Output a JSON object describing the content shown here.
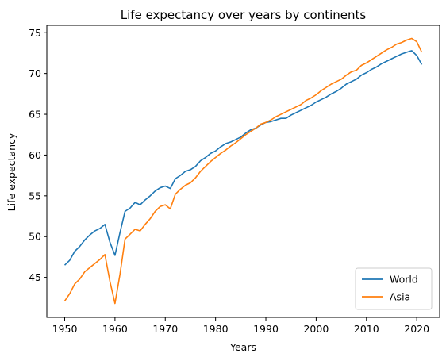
{
  "chart_data": {
    "type": "line",
    "title": "Life expectancy over years by continents",
    "xlabel": "Years",
    "ylabel": "Life expectancy",
    "xlim": [
      1946.45,
      2024.55
    ],
    "ylim": [
      40.1,
      75.9
    ],
    "xticks": [
      "1950",
      "1960",
      "1970",
      "1980",
      "1990",
      "2000",
      "2010",
      "2020"
    ],
    "yticks": [
      "45",
      "50",
      "55",
      "60",
      "65",
      "70",
      "75"
    ],
    "grid": false,
    "legend_position": "lower-right",
    "x": [
      1950,
      1951,
      1952,
      1953,
      1954,
      1955,
      1956,
      1957,
      1958,
      1959,
      1960,
      1961,
      1962,
      1963,
      1964,
      1965,
      1966,
      1967,
      1968,
      1969,
      1970,
      1971,
      1972,
      1973,
      1974,
      1975,
      1976,
      1977,
      1978,
      1979,
      1980,
      1981,
      1982,
      1983,
      1984,
      1985,
      1986,
      1987,
      1988,
      1989,
      1990,
      1991,
      1992,
      1993,
      1994,
      1995,
      1996,
      1997,
      1998,
      1999,
      2000,
      2001,
      2002,
      2003,
      2004,
      2005,
      2006,
      2007,
      2008,
      2009,
      2010,
      2011,
      2012,
      2013,
      2014,
      2015,
      2016,
      2017,
      2018,
      2019,
      2020,
      2021
    ],
    "series": [
      {
        "name": "World",
        "color": "#1f77b4",
        "values": [
          46.5,
          47.1,
          48.2,
          48.8,
          49.6,
          50.2,
          50.7,
          51.0,
          51.5,
          49.3,
          47.7,
          50.5,
          53.1,
          53.5,
          54.2,
          53.9,
          54.5,
          55.0,
          55.6,
          56.0,
          56.2,
          55.9,
          57.1,
          57.5,
          58.0,
          58.2,
          58.6,
          59.3,
          59.7,
          60.2,
          60.5,
          61.0,
          61.4,
          61.6,
          61.9,
          62.2,
          62.7,
          63.1,
          63.3,
          63.7,
          64.0,
          64.1,
          64.3,
          64.5,
          64.5,
          64.9,
          65.2,
          65.5,
          65.8,
          66.1,
          66.5,
          66.8,
          67.1,
          67.5,
          67.8,
          68.2,
          68.7,
          69.0,
          69.3,
          69.8,
          70.1,
          70.5,
          70.8,
          71.2,
          71.5,
          71.8,
          72.1,
          72.4,
          72.6,
          72.8,
          72.2,
          71.1
        ]
      },
      {
        "name": "Asia",
        "color": "#ff7f0e",
        "values": [
          42.1,
          43.0,
          44.2,
          44.8,
          45.7,
          46.2,
          46.7,
          47.2,
          47.8,
          44.5,
          41.8,
          45.4,
          49.7,
          50.3,
          50.9,
          50.7,
          51.5,
          52.2,
          53.1,
          53.7,
          53.9,
          53.4,
          55.2,
          55.8,
          56.3,
          56.6,
          57.2,
          58.0,
          58.6,
          59.2,
          59.7,
          60.2,
          60.6,
          61.1,
          61.5,
          62.0,
          62.5,
          62.9,
          63.3,
          63.8,
          64.0,
          64.3,
          64.7,
          65.0,
          65.3,
          65.6,
          65.9,
          66.2,
          66.7,
          67.0,
          67.4,
          67.9,
          68.3,
          68.7,
          69.0,
          69.3,
          69.8,
          70.2,
          70.4,
          71.0,
          71.3,
          71.7,
          72.1,
          72.5,
          72.9,
          73.2,
          73.6,
          73.8,
          74.1,
          74.3,
          73.9,
          72.6
        ]
      }
    ]
  }
}
